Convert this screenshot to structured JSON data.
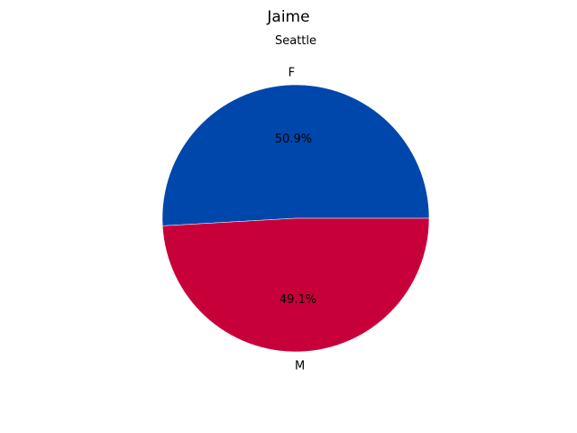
{
  "chart_data": {
    "type": "pie",
    "title": "Jaime",
    "subtitle": "Seattle",
    "slices": [
      {
        "label": "F",
        "value": 50.9,
        "pct_label": "50.9%",
        "color": "#0047ab"
      },
      {
        "label": "M",
        "value": 49.1,
        "pct_label": "49.1%",
        "color": "#c8003a"
      }
    ],
    "start_angle_deg": 0,
    "direction": "counterclockwise"
  }
}
